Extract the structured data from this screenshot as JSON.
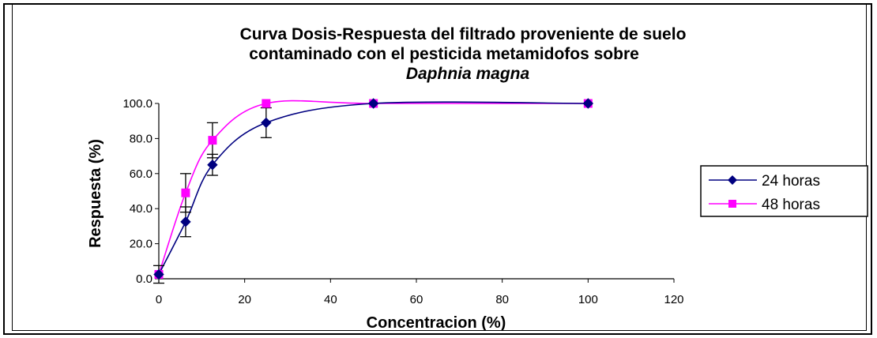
{
  "chart_data": {
    "type": "line",
    "title": "Curva Dosis-Respuesta del filtrado proveniente de suelo contaminado con el pesticida metamidofos sobre",
    "title_lines": [
      "Curva Dosis-Respuesta del filtrado proveniente de suelo",
      "contaminado con el pesticida metamidofos sobre"
    ],
    "title_italic_line": "Daphnia magna",
    "xlabel": "Concentracion (%)",
    "ylabel": "Respuesta (%)",
    "xlim": [
      0,
      120
    ],
    "ylim": [
      0,
      100
    ],
    "x_ticks": [
      "0",
      "20",
      "40",
      "60",
      "80",
      "100",
      "120"
    ],
    "y_ticks": [
      "0.0",
      "20.0",
      "40.0",
      "60.0",
      "80.0",
      "100.0"
    ],
    "grid": false,
    "legend_position": "right",
    "series": [
      {
        "name": "24 horas",
        "color": "#000080",
        "marker": "diamond",
        "x": [
          0,
          6.25,
          12.5,
          25,
          50,
          100
        ],
        "y": [
          2.5,
          32.5,
          65,
          89,
          100,
          100
        ],
        "error": [
          5,
          8.5,
          6,
          8.5,
          0,
          0
        ]
      },
      {
        "name": "48 horas",
        "color": "#ff00ff",
        "marker": "square",
        "x": [
          0,
          6.25,
          12.5,
          25,
          50,
          100
        ],
        "y": [
          2.5,
          49,
          79,
          100,
          100,
          100
        ],
        "error": [
          0,
          11,
          10,
          0,
          0,
          0
        ]
      }
    ]
  }
}
